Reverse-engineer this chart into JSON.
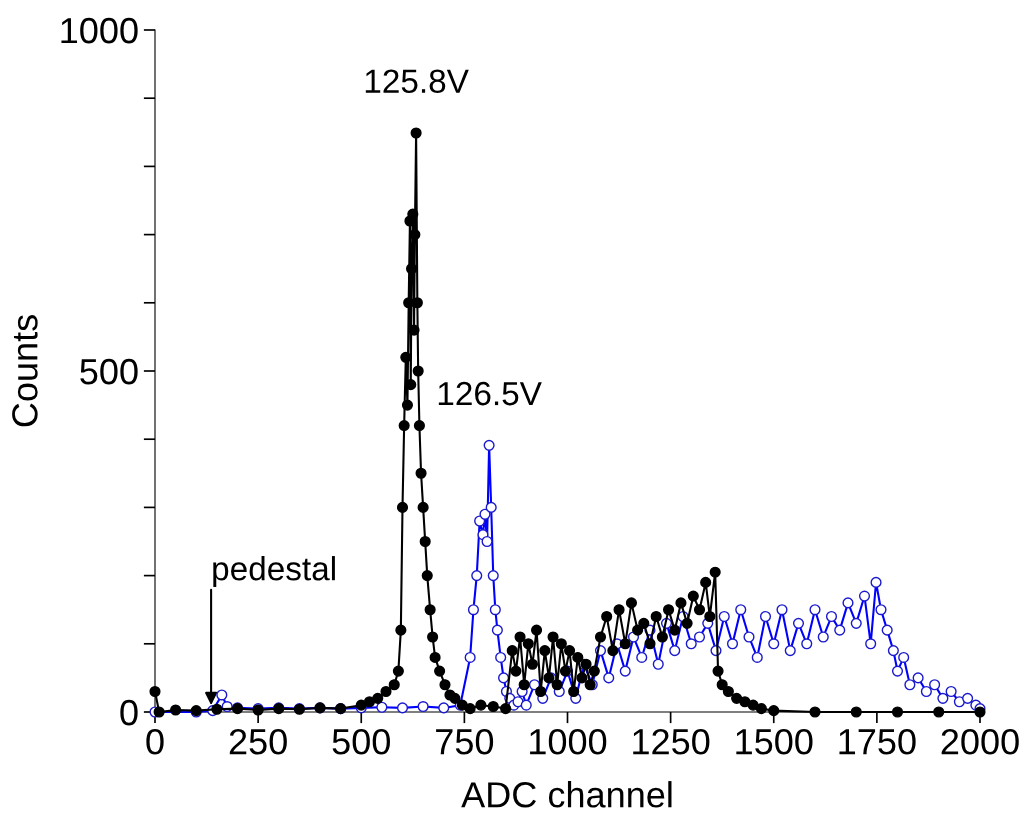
{
  "chart_data": {
    "type": "line",
    "xlabel": "ADC channel",
    "ylabel": "Counts",
    "xlim": [
      0,
      2000
    ],
    "ylim": [
      0,
      1000
    ],
    "xticks": [
      0,
      250,
      500,
      750,
      1000,
      1250,
      1500,
      1750,
      2000
    ],
    "yticks": [
      0,
      {
        "value": 100,
        "label": null
      },
      {
        "value": 200,
        "label": null
      },
      {
        "value": 300,
        "label": null
      },
      {
        "value": 400,
        "label": null
      },
      500,
      {
        "value": 600,
        "label": null
      },
      {
        "value": 700,
        "label": null
      },
      {
        "value": 800,
        "label": null
      },
      {
        "value": 900,
        "label": null
      },
      1000
    ],
    "marker": "circle",
    "grid": false,
    "series": [
      {
        "color": "#000000",
        "x": [
          0,
          10,
          50,
          100,
          150,
          200,
          250,
          300,
          350,
          400,
          450,
          500,
          520,
          540,
          560,
          580,
          590,
          596,
          600,
          604,
          608,
          612,
          615,
          618,
          620,
          622,
          625,
          628,
          630,
          633,
          636,
          638,
          641,
          645,
          650,
          655,
          660,
          667,
          673,
          679,
          690,
          703,
          715,
          727,
          745,
          764,
          790,
          820,
          850,
          866,
          875,
          885,
          895,
          905,
          915,
          925,
          935,
          945,
          955,
          965,
          975,
          985,
          995,
          1005,
          1015,
          1025,
          1035,
          1045,
          1055,
          1065,
          1080,
          1095,
          1110,
          1125,
          1140,
          1155,
          1170,
          1185,
          1200,
          1215,
          1230,
          1245,
          1260,
          1275,
          1290,
          1305,
          1320,
          1335,
          1345,
          1358,
          1365,
          1375,
          1390,
          1410,
          1430,
          1450,
          1470,
          1500,
          1600,
          1700,
          1800,
          1900,
          2000
        ],
        "values": [
          30,
          0,
          3,
          2,
          4,
          5,
          3,
          5,
          4,
          6,
          5,
          10,
          15,
          20,
          30,
          40,
          60,
          120,
          300,
          420,
          520,
          450,
          600,
          720,
          480,
          650,
          730,
          560,
          700,
          849,
          600,
          500,
          420,
          350,
          300,
          250,
          200,
          150,
          110,
          80,
          60,
          40,
          25,
          20,
          10,
          5,
          10,
          8,
          5,
          90,
          60,
          110,
          40,
          100,
          70,
          120,
          30,
          90,
          50,
          110,
          40,
          100,
          60,
          90,
          30,
          80,
          50,
          70,
          40,
          60,
          110,
          140,
          90,
          150,
          100,
          160,
          120,
          130,
          100,
          140,
          110,
          150,
          120,
          160,
          130,
          170,
          150,
          190,
          140,
          205,
          60,
          40,
          30,
          20,
          15,
          10,
          5,
          2,
          0,
          0,
          0,
          0,
          0
        ]
      },
      {
        "color": "#0000ff",
        "x": [
          0,
          100,
          140,
          162,
          175,
          200,
          250,
          300,
          350,
          400,
          450,
          500,
          550,
          600,
          650,
          700,
          740,
          764,
          772,
          780,
          787,
          795,
          800,
          805,
          810,
          815,
          820,
          825,
          830,
          838,
          845,
          852,
          860,
          870,
          880,
          890,
          900,
          920,
          940,
          960,
          980,
          1000,
          1020,
          1040,
          1060,
          1080,
          1100,
          1120,
          1140,
          1160,
          1180,
          1200,
          1220,
          1240,
          1260,
          1280,
          1300,
          1320,
          1340,
          1360,
          1380,
          1400,
          1420,
          1440,
          1460,
          1480,
          1500,
          1520,
          1540,
          1560,
          1580,
          1600,
          1620,
          1640,
          1660,
          1680,
          1700,
          1720,
          1735,
          1748,
          1760,
          1775,
          1790,
          1800,
          1815,
          1830,
          1850,
          1870,
          1890,
          1910,
          1930,
          1950,
          1970,
          1990,
          2000
        ],
        "values": [
          0,
          0,
          2,
          25,
          8,
          6,
          5,
          6,
          5,
          6,
          5,
          6,
          7,
          6,
          8,
          6,
          10,
          80,
          150,
          200,
          280,
          260,
          290,
          250,
          391,
          300,
          200,
          150,
          120,
          80,
          50,
          30,
          20,
          10,
          15,
          30,
          10,
          40,
          20,
          50,
          30,
          60,
          20,
          70,
          40,
          90,
          50,
          100,
          60,
          110,
          80,
          120,
          70,
          130,
          90,
          140,
          100,
          110,
          130,
          90,
          140,
          100,
          150,
          110,
          80,
          140,
          100,
          150,
          90,
          130,
          100,
          150,
          110,
          140,
          120,
          160,
          130,
          170,
          100,
          190,
          150,
          120,
          90,
          60,
          80,
          40,
          50,
          30,
          40,
          20,
          30,
          15,
          20,
          10,
          5
        ]
      }
    ],
    "annotations": [
      {
        "text": "125.8V",
        "x": 633,
        "y": 849
      },
      {
        "text": "126.5V",
        "x": 810,
        "y": 391
      },
      {
        "text": "pedestal",
        "x": 136,
        "y": 10
      }
    ]
  }
}
